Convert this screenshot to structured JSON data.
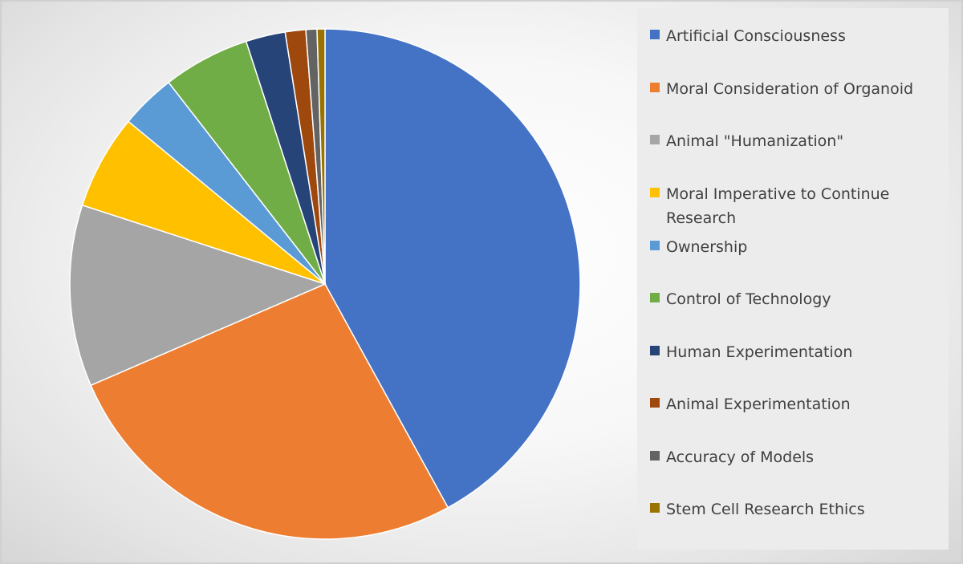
{
  "chart_data": {
    "type": "pie",
    "categories": [
      "Artificial Consciousness",
      "Moral Consideration of Organoid",
      "Animal \"Humanization\"",
      "Moral Imperative to Continue Research",
      "Ownership",
      "Control of Technology",
      "Human Experimentation",
      "Animal Experimentation",
      "Accuracy of Models",
      "Stem Cell Research Ethics"
    ],
    "values": [
      42.0,
      26.5,
      11.5,
      6.0,
      3.5,
      5.5,
      2.5,
      1.3,
      0.7,
      0.5
    ],
    "colors": [
      "#4472C4",
      "#ED7D31",
      "#A5A5A5",
      "#FFC000",
      "#5B9BD5",
      "#70AD47",
      "#264478",
      "#9E480E",
      "#636363",
      "#997300"
    ],
    "legend_position": "right",
    "start_angle_deg": 0,
    "direction": "clockwise"
  },
  "legend": {
    "items": [
      {
        "label": "Artificial Consciousness",
        "color": "#4472C4"
      },
      {
        "label": "Moral Consideration of Organoid",
        "color": "#ED7D31"
      },
      {
        "label": "Animal \"Humanization\"",
        "color": "#A5A5A5"
      },
      {
        "label": "Moral Imperative to Continue Research",
        "color": "#FFC000"
      },
      {
        "label": "Ownership",
        "color": "#5B9BD5"
      },
      {
        "label": "Control of Technology",
        "color": "#70AD47"
      },
      {
        "label": "Human Experimentation",
        "color": "#264478"
      },
      {
        "label": "Animal Experimentation",
        "color": "#9E480E"
      },
      {
        "label": "Accuracy of Models",
        "color": "#636363"
      },
      {
        "label": "Stem Cell Research Ethics",
        "color": "#997300"
      }
    ]
  }
}
